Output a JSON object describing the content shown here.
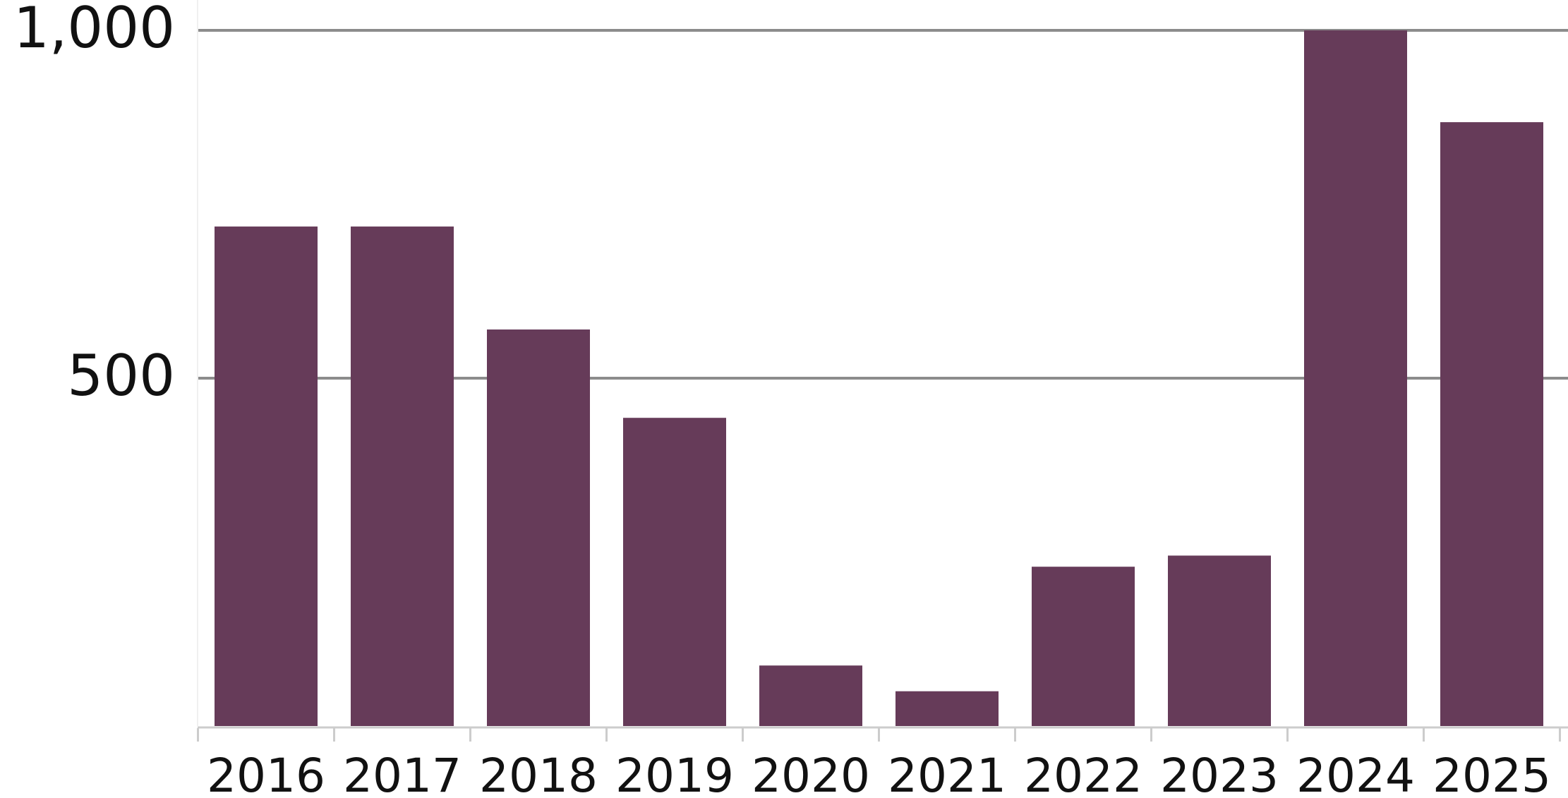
{
  "chart_data": {
    "type": "bar",
    "title": "",
    "xlabel": "",
    "ylabel": "",
    "categories": [
      "2016",
      "2017",
      "2018",
      "2019",
      "2020",
      "2021",
      "2022",
      "2023",
      "2024",
      "2025"
    ],
    "values": [
      718,
      718,
      570,
      443,
      87,
      50,
      229,
      245,
      1000,
      868
    ],
    "ylim": [
      0,
      1000
    ],
    "yticks": [
      500,
      1000
    ],
    "ytick_labels": [
      "500",
      "1,000"
    ],
    "grid": true,
    "legend": "none",
    "colors": {
      "bar": "#663b59",
      "grid": "#8c8c8c",
      "axis": "#cccccc",
      "text": "#111111"
    }
  }
}
